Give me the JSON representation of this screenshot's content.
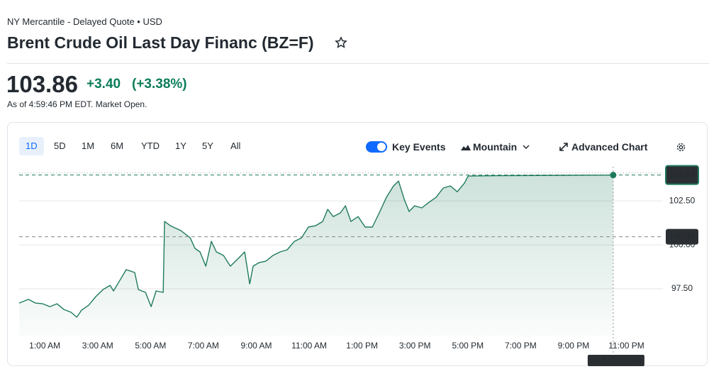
{
  "header": {
    "exchange_note": "NY Mercantile - Delayed Quote • USD",
    "title": "Brent Crude Oil Last Day Financ (BZ=F)"
  },
  "quote": {
    "price": "103.86",
    "change": "+3.40",
    "change_percent": "(+3.38%)",
    "as_of": "As of 4:59:46 PM EDT. Market Open."
  },
  "range_tabs": [
    "1D",
    "5D",
    "1M",
    "6M",
    "YTD",
    "1Y",
    "5Y",
    "All"
  ],
  "controls": {
    "key_events": "Key Events",
    "chart_style": "Mountain",
    "advanced_chart": "Advanced Chart"
  },
  "chart_data": {
    "type": "area",
    "color": "#1f7a5c",
    "x": [
      0.03,
      0.38,
      0.65,
      0.92,
      1.19,
      1.46,
      1.72,
      1.99,
      2.21,
      2.39,
      2.66,
      2.93,
      3.2,
      3.47,
      3.6,
      3.87,
      4.08,
      4.4,
      4.54,
      4.81,
      5.02,
      5.21,
      5.48,
      5.53,
      5.75,
      6.15,
      6.5,
      6.68,
      6.87,
      7.09,
      7.3,
      7.49,
      7.76,
      8.02,
      8.29,
      8.56,
      8.75,
      8.88,
      9.1,
      9.36,
      9.63,
      9.9,
      10.17,
      10.44,
      10.71,
      10.97,
      11.24,
      11.51,
      11.7,
      11.91,
      12.18,
      12.37,
      12.58,
      12.85,
      13.12,
      13.39,
      13.65,
      13.92,
      14.19,
      14.38,
      14.59,
      14.78,
      14.99,
      15.26,
      15.53,
      15.8,
      16.07,
      16.34,
      16.6,
      16.87,
      17.01,
      18.08,
      22.5
    ],
    "values": [
      96.69,
      96.9,
      96.69,
      96.65,
      96.49,
      96.65,
      96.33,
      96.17,
      95.89,
      96.29,
      96.57,
      97.06,
      97.46,
      97.7,
      97.38,
      98.06,
      98.59,
      98.43,
      97.46,
      97.3,
      96.49,
      97.38,
      97.3,
      101.33,
      101.09,
      100.81,
      100.4,
      99.8,
      99.6,
      98.79,
      100.2,
      99.6,
      99.4,
      98.79,
      99.19,
      99.6,
      97.78,
      98.79,
      98.99,
      99.07,
      99.4,
      99.6,
      99.72,
      100.2,
      100.4,
      101.01,
      101.09,
      101.33,
      102.02,
      101.61,
      101.82,
      102.22,
      101.33,
      101.61,
      101.01,
      101.01,
      101.82,
      102.7,
      103.35,
      103.63,
      102.62,
      101.9,
      102.22,
      102.1,
      102.42,
      102.7,
      103.23,
      103.35,
      103.02,
      103.51,
      103.91,
      103.93,
      103.97
    ],
    "xlim": [
      0.03,
      24.38
    ],
    "ylim": [
      94.8,
      104.44
    ],
    "xticks": [
      {
        "value": 1,
        "label": "1:00 AM"
      },
      {
        "value": 3,
        "label": "3:00 AM"
      },
      {
        "value": 5,
        "label": "5:00 AM"
      },
      {
        "value": 7,
        "label": "7:00 AM"
      },
      {
        "value": 9,
        "label": "9:00 AM"
      },
      {
        "value": 11,
        "label": "11:00 AM"
      },
      {
        "value": 13,
        "label": "1:00 PM"
      },
      {
        "value": 15,
        "label": "3:00 PM"
      },
      {
        "value": 17,
        "label": "5:00 PM"
      },
      {
        "value": 19,
        "label": "7:00 PM"
      },
      {
        "value": 21,
        "label": "9:00 PM"
      },
      {
        "value": 23,
        "label": "11:00 PM"
      }
    ],
    "yticks": [
      {
        "value": 97.5,
        "label": "97.50"
      },
      {
        "value": 100,
        "label": "100.00"
      },
      {
        "value": 102.5,
        "label": "102.50"
      }
    ],
    "grid": true,
    "last_price": 103.97,
    "previous_close": 100.46,
    "crosshair_label": "3/13 10:33 PM"
  }
}
